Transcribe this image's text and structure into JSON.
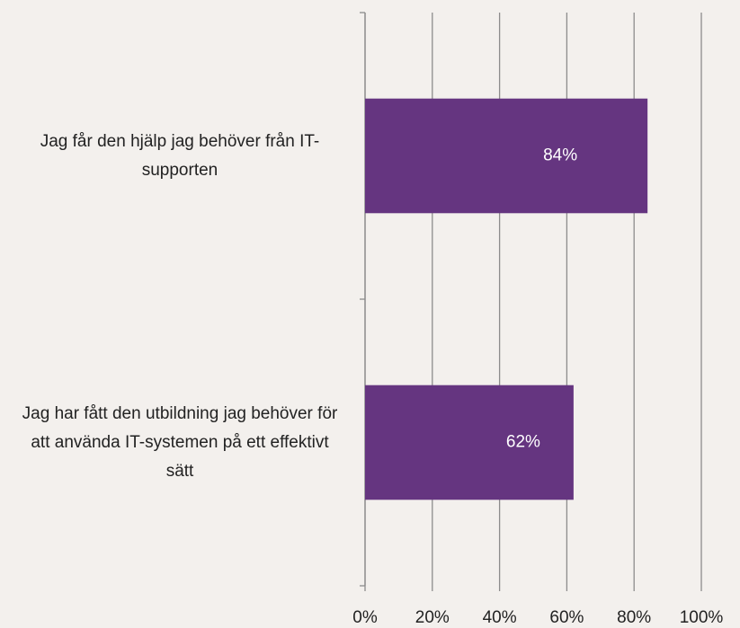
{
  "chart_data": {
    "type": "barh",
    "categories": [
      "Jag får den hjälp jag behöver från IT-supporten",
      "Jag har fått den utbildning jag behöver för att använda IT-systemen på ett effektivt sätt"
    ],
    "values": [
      84,
      62
    ],
    "value_labels": [
      "84%",
      "62%"
    ],
    "color": "#653580",
    "xlim": [
      0,
      100
    ],
    "xticks": [
      {
        "value": 0,
        "label": "0%"
      },
      {
        "value": 20,
        "label": "20%"
      },
      {
        "value": 40,
        "label": "40%"
      },
      {
        "value": 60,
        "label": "60%"
      },
      {
        "value": 80,
        "label": "80%"
      },
      {
        "value": 100,
        "label": "100%"
      }
    ],
    "grid": true
  }
}
